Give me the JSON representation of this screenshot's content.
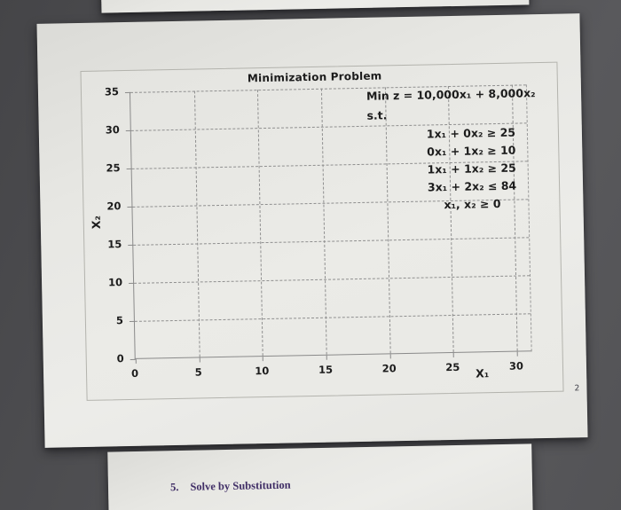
{
  "slides": {
    "main": {
      "page_number": "2"
    },
    "bottom": {
      "item_number": "5.",
      "item_text": "Solve by Substitution"
    }
  },
  "chart_data": {
    "type": "scatter",
    "title": "Minimization Problem",
    "xlabel": "X₁",
    "ylabel": "X₂",
    "xlim": [
      0,
      30
    ],
    "ylim": [
      0,
      35
    ],
    "x_ticks": [
      0,
      5,
      10,
      15,
      20,
      25,
      30
    ],
    "y_ticks": [
      0,
      5,
      10,
      15,
      20,
      25,
      30,
      35
    ],
    "grid": true,
    "grid_style": "dashed",
    "legend": "none",
    "series": [],
    "annotations": {
      "objective": "Min z = 10,000x₁ + 8,000x₂",
      "st_label": "s.t.",
      "constraints": [
        "1x₁ + 0x₂ ≥ 25",
        "0x₁ + 1x₂ ≥ 10",
        "1x₁ + 1x₂ ≥ 25",
        "3x₁ + 2x₂ ≤ 84",
        "x₁, x₂ ≥ 0"
      ]
    }
  }
}
